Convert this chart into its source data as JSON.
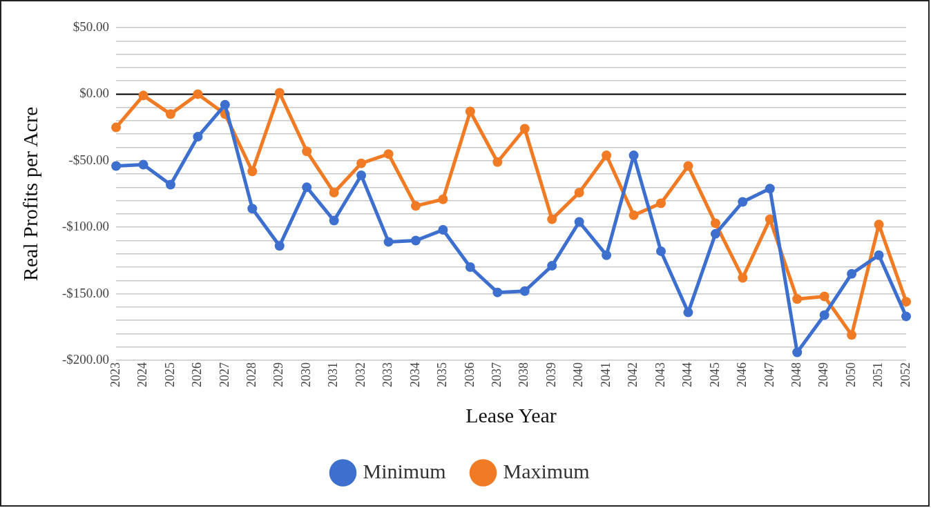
{
  "chart_data": {
    "type": "line",
    "xlabel": "Lease Year",
    "ylabel": "Real Profits per Acre",
    "categories": [
      "2023",
      "2024",
      "2025",
      "2026",
      "2027",
      "2028",
      "2029",
      "2030",
      "2031",
      "2032",
      "2033",
      "2034",
      "2035",
      "2036",
      "2037",
      "2038",
      "2039",
      "2040",
      "2041",
      "2042",
      "2043",
      "2044",
      "2045",
      "2046",
      "2047",
      "2048",
      "2049",
      "2050",
      "2051",
      "2052"
    ],
    "series": [
      {
        "name": "Minimum",
        "color": "#3d6fcf",
        "values": [
          -54,
          -53,
          -68,
          -32,
          -8,
          -86,
          -114,
          -70,
          -95,
          -61,
          -111,
          -110,
          -102,
          -130,
          -149,
          -148,
          -129,
          -96,
          -121,
          -46,
          -118,
          -164,
          -105,
          -81,
          -71,
          -194,
          -166,
          -135,
          -121,
          -167
        ]
      },
      {
        "name": "Maximum",
        "color": "#f07b24",
        "values": [
          -25,
          -1,
          -15,
          0,
          -15,
          -58,
          1,
          -43,
          -74,
          -52,
          -45,
          -84,
          -79,
          -13,
          -51,
          -26,
          -94,
          -74,
          -46,
          -91,
          -82,
          -54,
          -97,
          -138,
          -94,
          -154,
          -152,
          -181,
          -98,
          -156
        ]
      }
    ],
    "ylim": [
      -200,
      50
    ],
    "yticks": [
      {
        "value": -200,
        "label": "-$200.00"
      },
      {
        "value": -190,
        "label": null
      },
      {
        "value": -180,
        "label": null
      },
      {
        "value": -170,
        "label": null
      },
      {
        "value": -160,
        "label": null
      },
      {
        "value": -150,
        "label": "-$150.00"
      },
      {
        "value": -140,
        "label": null
      },
      {
        "value": -130,
        "label": null
      },
      {
        "value": -120,
        "label": null
      },
      {
        "value": -110,
        "label": null
      },
      {
        "value": -100,
        "label": "-$100.00"
      },
      {
        "value": -90,
        "label": null
      },
      {
        "value": -80,
        "label": null
      },
      {
        "value": -70,
        "label": null
      },
      {
        "value": -60,
        "label": null
      },
      {
        "value": -50,
        "label": "-$50.00"
      },
      {
        "value": -40,
        "label": null
      },
      {
        "value": -30,
        "label": null
      },
      {
        "value": -20,
        "label": null
      },
      {
        "value": -10,
        "label": null
      },
      {
        "value": 0,
        "label": "$0.00"
      },
      {
        "value": 10,
        "label": null
      },
      {
        "value": 20,
        "label": null
      },
      {
        "value": 30,
        "label": null
      },
      {
        "value": 40,
        "label": null
      },
      {
        "value": 50,
        "label": "$50.00"
      }
    ],
    "ref_lines": [
      {
        "axis": "y",
        "value": 0,
        "color": "#000000"
      }
    ],
    "grid": "y",
    "legend": "bottom",
    "marker": "circle",
    "line_style": "solid"
  }
}
